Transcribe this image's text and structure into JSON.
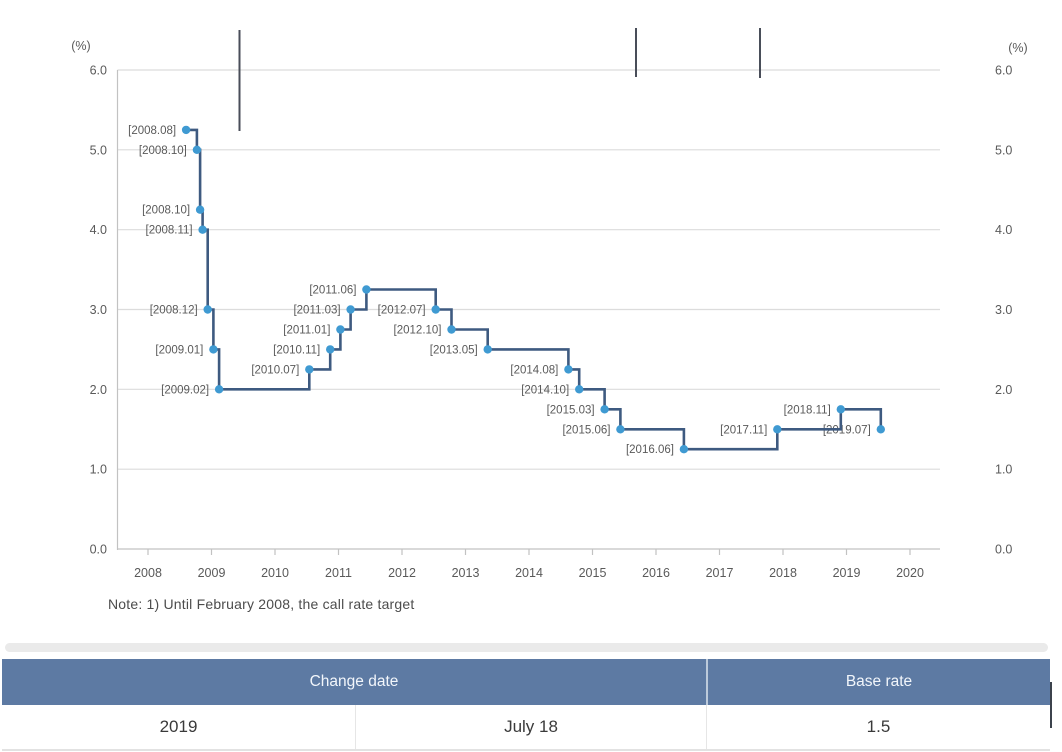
{
  "chart": {
    "unit_label_left": "(%)",
    "unit_label_right": "(%)",
    "note": "Note: 1) Until February 2008, the call rate target"
  },
  "chart_data": {
    "type": "line",
    "step": "after",
    "title": "",
    "ylabel": "(%)",
    "ylim": [
      0.0,
      6.0
    ],
    "grid": true,
    "x_base": 2008,
    "xticks": [
      2008,
      2009,
      2010,
      2011,
      2012,
      2013,
      2014,
      2015,
      2016,
      2017,
      2018,
      2019,
      2020
    ],
    "xtick_labels": [
      "2008",
      "2009",
      "2010",
      "2011",
      "2012",
      "2013",
      "2014",
      "2015",
      "2016",
      "2017",
      "2018",
      "2019",
      "2020"
    ],
    "yticks": [
      0,
      1,
      2,
      3,
      4,
      5,
      6
    ],
    "ytick_labels": [
      "0.0",
      "1.0",
      "2.0",
      "3.0",
      "4.0",
      "5.0",
      "6.0"
    ],
    "colors": {
      "line": "#3e5a80",
      "marker": "#3f9ad2",
      "grid": "#dcdcdc",
      "axis": "#c2c2c2",
      "tick_text": "#585858",
      "point_label_text": "#4d5668"
    },
    "series": [
      {
        "name": "Base rate",
        "points": [
          {
            "label": "[2008.08]",
            "x": 2008.6,
            "value": 5.25
          },
          {
            "label": "[2008.10]",
            "x": 2008.77,
            "value": 5.0
          },
          {
            "label": "[2008.10]",
            "x": 2008.82,
            "value": 4.25
          },
          {
            "label": "[2008.11]",
            "x": 2008.86,
            "value": 4.0
          },
          {
            "label": "[2008.12]",
            "x": 2008.94,
            "value": 3.0
          },
          {
            "label": "[2009.01]",
            "x": 2009.03,
            "value": 2.5
          },
          {
            "label": "[2009.02]",
            "x": 2009.12,
            "value": 2.0
          },
          {
            "label": "[2010.07]",
            "x": 2010.54,
            "value": 2.25
          },
          {
            "label": "[2010.11]",
            "x": 2010.87,
            "value": 2.5
          },
          {
            "label": "[2011.01]",
            "x": 2011.03,
            "value": 2.75
          },
          {
            "label": "[2011.03]",
            "x": 2011.19,
            "value": 3.0
          },
          {
            "label": "[2011.06]",
            "x": 2011.44,
            "value": 3.25
          },
          {
            "label": "[2012.07]",
            "x": 2012.53,
            "value": 3.0
          },
          {
            "label": "[2012.10]",
            "x": 2012.78,
            "value": 2.75
          },
          {
            "label": "[2013.05]",
            "x": 2013.35,
            "value": 2.5
          },
          {
            "label": "[2014.08]",
            "x": 2014.62,
            "value": 2.25
          },
          {
            "label": "[2014.10]",
            "x": 2014.79,
            "value": 2.0
          },
          {
            "label": "[2015.03]",
            "x": 2015.19,
            "value": 1.75
          },
          {
            "label": "[2015.06]",
            "x": 2015.44,
            "value": 1.5
          },
          {
            "label": "[2016.06]",
            "x": 2016.44,
            "value": 1.25
          },
          {
            "label": "[2017.11]",
            "x": 2017.91,
            "value": 1.5
          },
          {
            "label": "[2018.11]",
            "x": 2018.91,
            "value": 1.75
          },
          {
            "label": "[2019.07]",
            "x": 2019.54,
            "value": 1.5
          }
        ]
      }
    ]
  },
  "table": {
    "header_bg": "#5d7aa3",
    "headers": [
      {
        "label": "Change date"
      },
      {
        "label": "Base rate"
      }
    ],
    "rows": [
      {
        "year": "2019",
        "date": "July 18",
        "rate": "1.5"
      }
    ]
  }
}
